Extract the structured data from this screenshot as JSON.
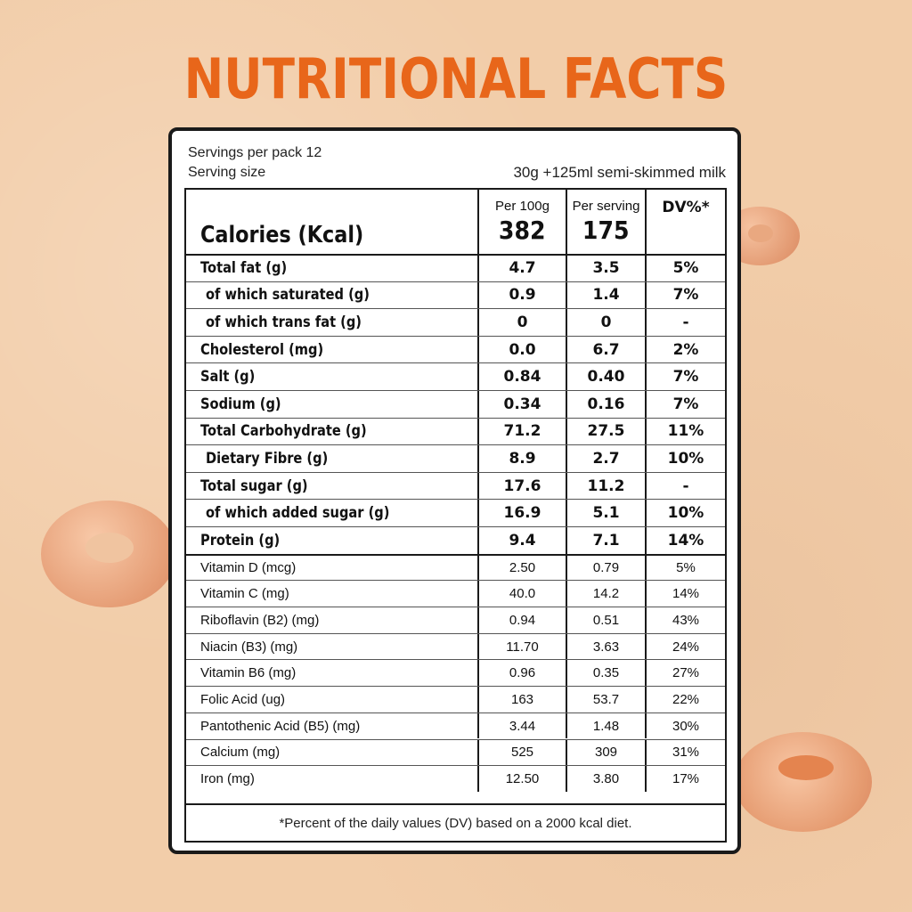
{
  "title": "NUTRITIONAL FACTS",
  "serving": {
    "servings_per_pack": "Servings  per pack 12",
    "serving_size_label": "Serving size",
    "serving_size_value": "30g +125ml semi-skimmed milk"
  },
  "header": {
    "calories_label": "Calories (Kcal)",
    "per100_label": "Per 100g",
    "per100_value": "382",
    "perserving_label": "Per serving",
    "perserving_value": "175",
    "dv_label": "DV%*"
  },
  "rows": [
    {
      "label": "Total fat (g)",
      "v1": "4.7",
      "v2": "3.5",
      "dv": "5%"
    },
    {
      "label": "of which saturated (g)",
      "v1": "0.9",
      "v2": "1.4",
      "dv": "7%"
    },
    {
      "label": "of which trans fat (g)",
      "v1": "0",
      "v2": "0",
      "dv": "-"
    },
    {
      "label": "Cholesterol (mg)",
      "v1": "0.0",
      "v2": "6.7",
      "dv": "2%"
    },
    {
      "label": "Salt (g)",
      "v1": "0.84",
      "v2": "0.40",
      "dv": "7%"
    },
    {
      "label": "Sodium (g)",
      "v1": "0.34",
      "v2": "0.16",
      "dv": "7%"
    },
    {
      "label": "Total Carbohydrate (g)",
      "v1": "71.2",
      "v2": "27.5",
      "dv": "11%"
    },
    {
      "label": "Dietary Fibre (g)",
      "v1": "8.9",
      "v2": "2.7",
      "dv": "10%"
    },
    {
      "label": "Total sugar (g)",
      "v1": "17.6",
      "v2": "11.2",
      "dv": "-"
    },
    {
      "label": "of which added sugar (g)",
      "v1": "16.9",
      "v2": "5.1",
      "dv": "10%"
    },
    {
      "label": "Protein (g)",
      "v1": "9.4",
      "v2": "7.1",
      "dv": "14%"
    }
  ],
  "vitamins": [
    {
      "label": "Vitamin D (mcg)",
      "v1": "2.50",
      "v2": "0.79",
      "dv": "5%"
    },
    {
      "label": "Vitamin C (mg)",
      "v1": "40.0",
      "v2": "14.2",
      "dv": "14%"
    },
    {
      "label": "Riboflavin (B2) (mg)",
      "v1": "0.94",
      "v2": "0.51",
      "dv": "43%"
    },
    {
      "label": "Niacin (B3) (mg)",
      "v1": "11.70",
      "v2": "3.63",
      "dv": "24%"
    },
    {
      "label": "Vitamin B6 (mg)",
      "v1": "0.96",
      "v2": "0.35",
      "dv": "27%"
    },
    {
      "label": "Folic Acid (ug)",
      "v1": "163",
      "v2": "53.7",
      "dv": "22%"
    },
    {
      "label": "Pantothenic Acid (B5) (mg)",
      "v1": "3.44",
      "v2": "1.48",
      "dv": "30%"
    },
    {
      "label": "Calcium (mg)",
      "v1": "525",
      "v2": "309",
      "dv": "31%"
    },
    {
      "label": "Iron (mg)",
      "v1": "12.50",
      "v2": "3.80",
      "dv": "17%"
    }
  ],
  "footnote": "*Percent of the daily values (DV) based on a 2000 kcal diet.",
  "colors": {
    "title": "#e8661a",
    "background": "#f2cda9",
    "cereal": "#e9a57c"
  }
}
